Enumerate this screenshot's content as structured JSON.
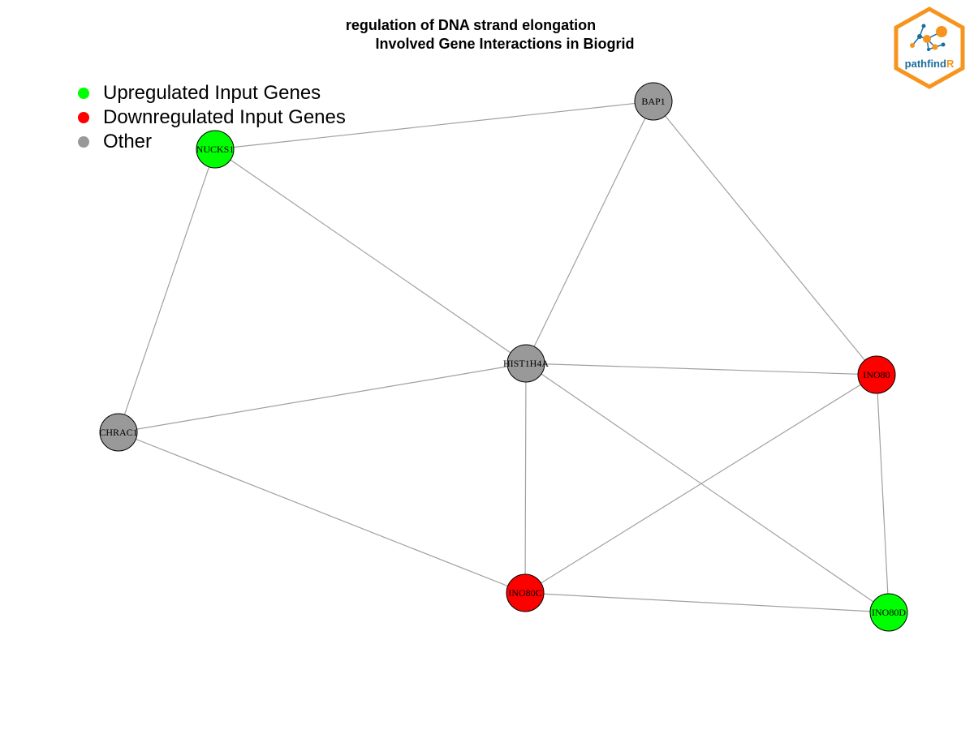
{
  "title": {
    "line1": "regulation of DNA strand elongation",
    "line2": "Involved Gene Interactions in Biogrid"
  },
  "legend": {
    "items": [
      {
        "label": "Upregulated Input Genes",
        "color": "#00ff00"
      },
      {
        "label": "Downregulated Input Genes",
        "color": "#ff0000"
      },
      {
        "label": "Other",
        "color": "#999999"
      }
    ]
  },
  "colors": {
    "up": "#00ff00",
    "down": "#ff0000",
    "other": "#999999",
    "edge": "#a0a0a0",
    "node_border": "#000000"
  },
  "nodes": [
    {
      "id": "BAP1",
      "label": "BAP1",
      "status": "other"
    },
    {
      "id": "NUCKS1",
      "label": "NUCKS1",
      "status": "up"
    },
    {
      "id": "HIST1H4A",
      "label": "HIST1H4A",
      "status": "other"
    },
    {
      "id": "INO80",
      "label": "INO80",
      "status": "down"
    },
    {
      "id": "CHRAC1",
      "label": "CHRAC1",
      "status": "other"
    },
    {
      "id": "INO80C",
      "label": "INO80C",
      "status": "down"
    },
    {
      "id": "INO80D",
      "label": "INO80D",
      "status": "up"
    }
  ],
  "edges": [
    [
      "NUCKS1",
      "BAP1"
    ],
    [
      "NUCKS1",
      "HIST1H4A"
    ],
    [
      "NUCKS1",
      "CHRAC1"
    ],
    [
      "BAP1",
      "HIST1H4A"
    ],
    [
      "BAP1",
      "INO80"
    ],
    [
      "HIST1H4A",
      "INO80"
    ],
    [
      "HIST1H4A",
      "CHRAC1"
    ],
    [
      "HIST1H4A",
      "INO80C"
    ],
    [
      "HIST1H4A",
      "INO80D"
    ],
    [
      "CHRAC1",
      "INO80C"
    ],
    [
      "INO80",
      "INO80C"
    ],
    [
      "INO80",
      "INO80D"
    ],
    [
      "INO80C",
      "INO80D"
    ]
  ],
  "logo": {
    "text_main": "pathfind",
    "text_accent": "R",
    "hex_color": "#f7941d",
    "text_color": "#1a6e9e"
  }
}
